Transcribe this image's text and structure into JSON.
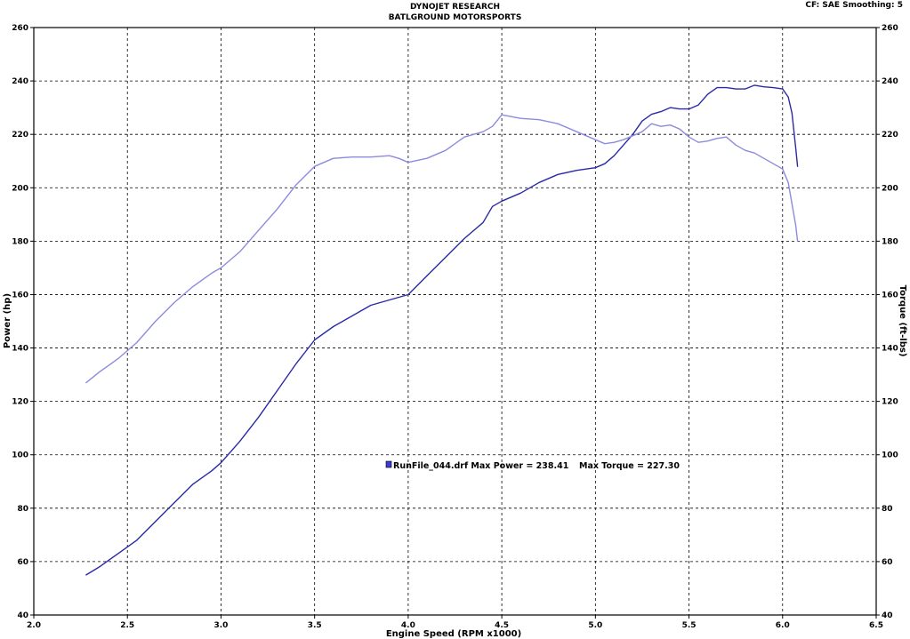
{
  "header": {
    "title": "DYNOJET RESEARCH",
    "subtitle": "BATLGROUND MOTORSPORTS",
    "settings": "CF: SAE  Smoothing: 5"
  },
  "colors": {
    "power": "#2a2aa8",
    "torque": "#8b8be0",
    "grid": "#000000",
    "swatch": "#3b3bd0"
  },
  "legend": {
    "run_label": "RunFile_044.drf Max Power = 238.41",
    "torque_label": "Max Torque = 227.30"
  },
  "chart_data": {
    "type": "line",
    "title": "DYNOJET RESEARCH",
    "subtitle": "BATLGROUND MOTORSPORTS",
    "xlabel": "Engine Speed (RPM x1000)",
    "ylabel": "Power (hp)",
    "y2label": "Torque (ft-lbs)",
    "xlim": [
      2.0,
      6.5
    ],
    "ylim": [
      40,
      260
    ],
    "x_ticks": [
      "2.0",
      "2.5",
      "3.0",
      "3.5",
      "4.0",
      "4.5",
      "5.0",
      "5.5",
      "6.0",
      "6.5"
    ],
    "y_ticks": [
      "40",
      "60",
      "80",
      "100",
      "120",
      "140",
      "160",
      "180",
      "200",
      "220",
      "240",
      "260"
    ],
    "grid": true,
    "legend_position": "center",
    "series": [
      {
        "name": "Power",
        "axis": "left",
        "x": [
          2.28,
          2.35,
          2.45,
          2.55,
          2.65,
          2.75,
          2.85,
          2.95,
          3.0,
          3.1,
          3.2,
          3.3,
          3.4,
          3.5,
          3.6,
          3.7,
          3.8,
          3.9,
          4.0,
          4.1,
          4.2,
          4.3,
          4.4,
          4.45,
          4.5,
          4.6,
          4.7,
          4.8,
          4.9,
          5.0,
          5.05,
          5.1,
          5.15,
          5.2,
          5.25,
          5.3,
          5.35,
          5.4,
          5.45,
          5.5,
          5.55,
          5.6,
          5.65,
          5.7,
          5.75,
          5.8,
          5.85,
          5.9,
          5.95,
          6.0,
          6.03,
          6.05,
          6.07,
          6.08
        ],
        "values": [
          55,
          58,
          63,
          68,
          75,
          82,
          89,
          94,
          97,
          105,
          114,
          124,
          134,
          143,
          148,
          152,
          156,
          158,
          160,
          167,
          174,
          181,
          187,
          193,
          195,
          198,
          202,
          205,
          206.5,
          207.5,
          209,
          212,
          216,
          220,
          225,
          227.5,
          228.5,
          230,
          229.5,
          229.5,
          231,
          235,
          237.5,
          237.5,
          237,
          237,
          238.4,
          237.8,
          237.5,
          237,
          234,
          228,
          215,
          208
        ]
      },
      {
        "name": "Torque",
        "axis": "right",
        "x": [
          2.28,
          2.35,
          2.45,
          2.55,
          2.65,
          2.75,
          2.85,
          2.95,
          3.0,
          3.1,
          3.2,
          3.3,
          3.4,
          3.5,
          3.6,
          3.7,
          3.8,
          3.9,
          3.95,
          4.0,
          4.1,
          4.2,
          4.3,
          4.4,
          4.45,
          4.5,
          4.6,
          4.7,
          4.8,
          4.9,
          5.0,
          5.05,
          5.1,
          5.15,
          5.2,
          5.25,
          5.3,
          5.35,
          5.4,
          5.45,
          5.5,
          5.55,
          5.6,
          5.65,
          5.7,
          5.75,
          5.8,
          5.85,
          5.9,
          5.95,
          6.0,
          6.03,
          6.05,
          6.07,
          6.08
        ],
        "values": [
          127,
          131,
          136,
          142,
          150,
          157,
          163,
          168,
          170,
          176,
          184,
          192,
          201,
          208,
          211,
          211.5,
          211.5,
          212,
          211,
          209.5,
          211,
          214,
          219,
          221,
          223,
          227.3,
          226,
          225.5,
          224,
          221,
          218,
          216.5,
          217,
          218,
          219.5,
          221,
          224,
          223,
          223.5,
          222,
          219,
          217,
          217.5,
          218.5,
          219,
          216,
          214,
          213,
          211,
          209,
          207,
          202,
          194,
          186,
          180
        ]
      }
    ]
  }
}
